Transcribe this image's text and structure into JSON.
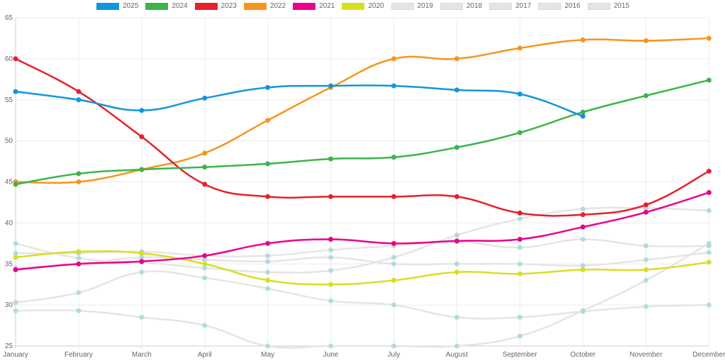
{
  "chart_data": {
    "type": "line",
    "title": "",
    "xlabel": "",
    "ylabel": "",
    "ylim": [
      25,
      65
    ],
    "yticks": [
      25,
      30,
      35,
      40,
      45,
      50,
      55,
      60,
      65
    ],
    "grid": true,
    "legend_position": "top-center",
    "categories": [
      "January",
      "February",
      "March",
      "April",
      "May",
      "June",
      "July",
      "August",
      "September",
      "October",
      "November",
      "December"
    ],
    "series": [
      {
        "name": "2025",
        "color": "#1296db",
        "hidden": false,
        "values": [
          56,
          55,
          53.7,
          55.2,
          56.5,
          56.7,
          56.7,
          56.2,
          55.7,
          53.0,
          null,
          null
        ]
      },
      {
        "name": "2024",
        "color": "#3cb44b",
        "hidden": false,
        "values": [
          44.7,
          46,
          46.5,
          46.8,
          47.2,
          47.8,
          48,
          49.2,
          51,
          53.5,
          55.5,
          57.4
        ]
      },
      {
        "name": "2023",
        "color": "#e6212a",
        "hidden": false,
        "values": [
          60,
          56,
          50.5,
          44.7,
          43.2,
          43.2,
          43.2,
          43.2,
          41.2,
          41,
          42.2,
          46.3
        ]
      },
      {
        "name": "2022",
        "color": "#f7941d",
        "hidden": false,
        "values": [
          45,
          45,
          46.5,
          48.5,
          52.5,
          56.5,
          60,
          60,
          61.3,
          62.3,
          62.2,
          62.5
        ]
      },
      {
        "name": "2021",
        "color": "#ec008c",
        "hidden": false,
        "values": [
          34.3,
          35,
          35.3,
          36,
          37.5,
          38,
          37.5,
          37.8,
          38,
          39.5,
          41.3,
          43.7
        ]
      },
      {
        "name": "2020",
        "color": "#d7df23",
        "hidden": false,
        "values": [
          35.8,
          36.5,
          36.3,
          35,
          33,
          32.5,
          33,
          34,
          33.8,
          34.3,
          34.3,
          35.2
        ]
      },
      {
        "name": "2019",
        "color": "#e5e5e5",
        "hidden": true,
        "values": [
          37.5,
          35.7,
          35.2,
          34.5,
          34,
          34.2,
          35.8,
          38.5,
          40.5,
          41.7,
          41.8,
          41.5
        ]
      },
      {
        "name": "2018",
        "color": "#e5e5e5",
        "hidden": true,
        "values": [
          36.3,
          36.3,
          36.5,
          36,
          36,
          36.7,
          37.2,
          37.7,
          37,
          38,
          37.2,
          37.2
        ]
      },
      {
        "name": "2017",
        "color": "#e5e5e5",
        "hidden": true,
        "values": [
          34.5,
          35,
          35.8,
          35.5,
          35.3,
          35.8,
          35,
          35,
          35,
          34.8,
          35.5,
          36.4
        ]
      },
      {
        "name": "2016",
        "color": "#e5e5e5",
        "hidden": true,
        "values": [
          30.3,
          31.5,
          34,
          33.3,
          32,
          30.5,
          30,
          28.5,
          28.5,
          29.2,
          29.8,
          30
        ]
      },
      {
        "name": "2015",
        "color": "#e5e5e5",
        "hidden": true,
        "values": [
          29.3,
          29.3,
          28.5,
          27.5,
          25,
          25,
          25,
          25,
          26.2,
          29.3,
          33,
          37.5
        ]
      }
    ],
    "muted_point_color": "#a8d8dc"
  }
}
